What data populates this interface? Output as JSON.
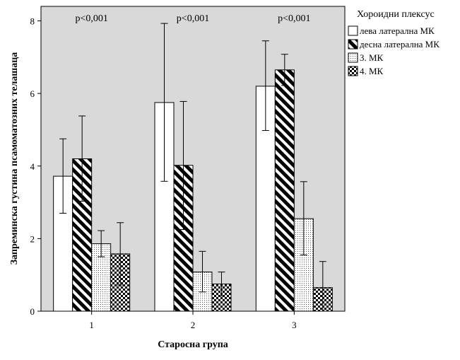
{
  "chart_data": {
    "type": "bar",
    "xlabel": "Старосна група",
    "ylabel": "Запреминска густина псамоматозних телашаца",
    "ylim": [
      0,
      8.4
    ],
    "yticks": [
      0,
      2,
      4,
      6,
      8
    ],
    "categories": [
      "1",
      "2",
      "3"
    ],
    "annotations": [
      "p<0,001",
      "p<0,001",
      "p<0,001"
    ],
    "legend": {
      "title": "Хороидни плексус",
      "position": "right"
    },
    "series": [
      {
        "name": "лева латерална МК",
        "pattern": "white",
        "values": [
          3.72,
          5.75,
          6.2
        ],
        "err_low": [
          2.7,
          3.58,
          4.98
        ],
        "err_high": [
          4.75,
          7.93,
          7.45
        ]
      },
      {
        "name": "десна латерална МК",
        "pattern": "diagonal",
        "values": [
          4.2,
          4.02,
          6.65
        ],
        "err_low": [
          3.03,
          2.25,
          6.22
        ],
        "err_high": [
          5.38,
          5.78,
          7.08
        ]
      },
      {
        "name": "3. МК",
        "pattern": "dots",
        "values": [
          1.86,
          1.08,
          2.55
        ],
        "err_low": [
          1.5,
          0.53,
          1.55
        ],
        "err_high": [
          2.22,
          1.65,
          3.57
        ]
      },
      {
        "name": "4. МК",
        "pattern": "checker",
        "values": [
          1.58,
          0.75,
          0.65
        ],
        "err_low": [
          0.72,
          0.42,
          0.0
        ],
        "err_high": [
          2.44,
          1.08,
          1.37
        ]
      }
    ],
    "plot_background": "#d9d9d9",
    "grid": false
  }
}
